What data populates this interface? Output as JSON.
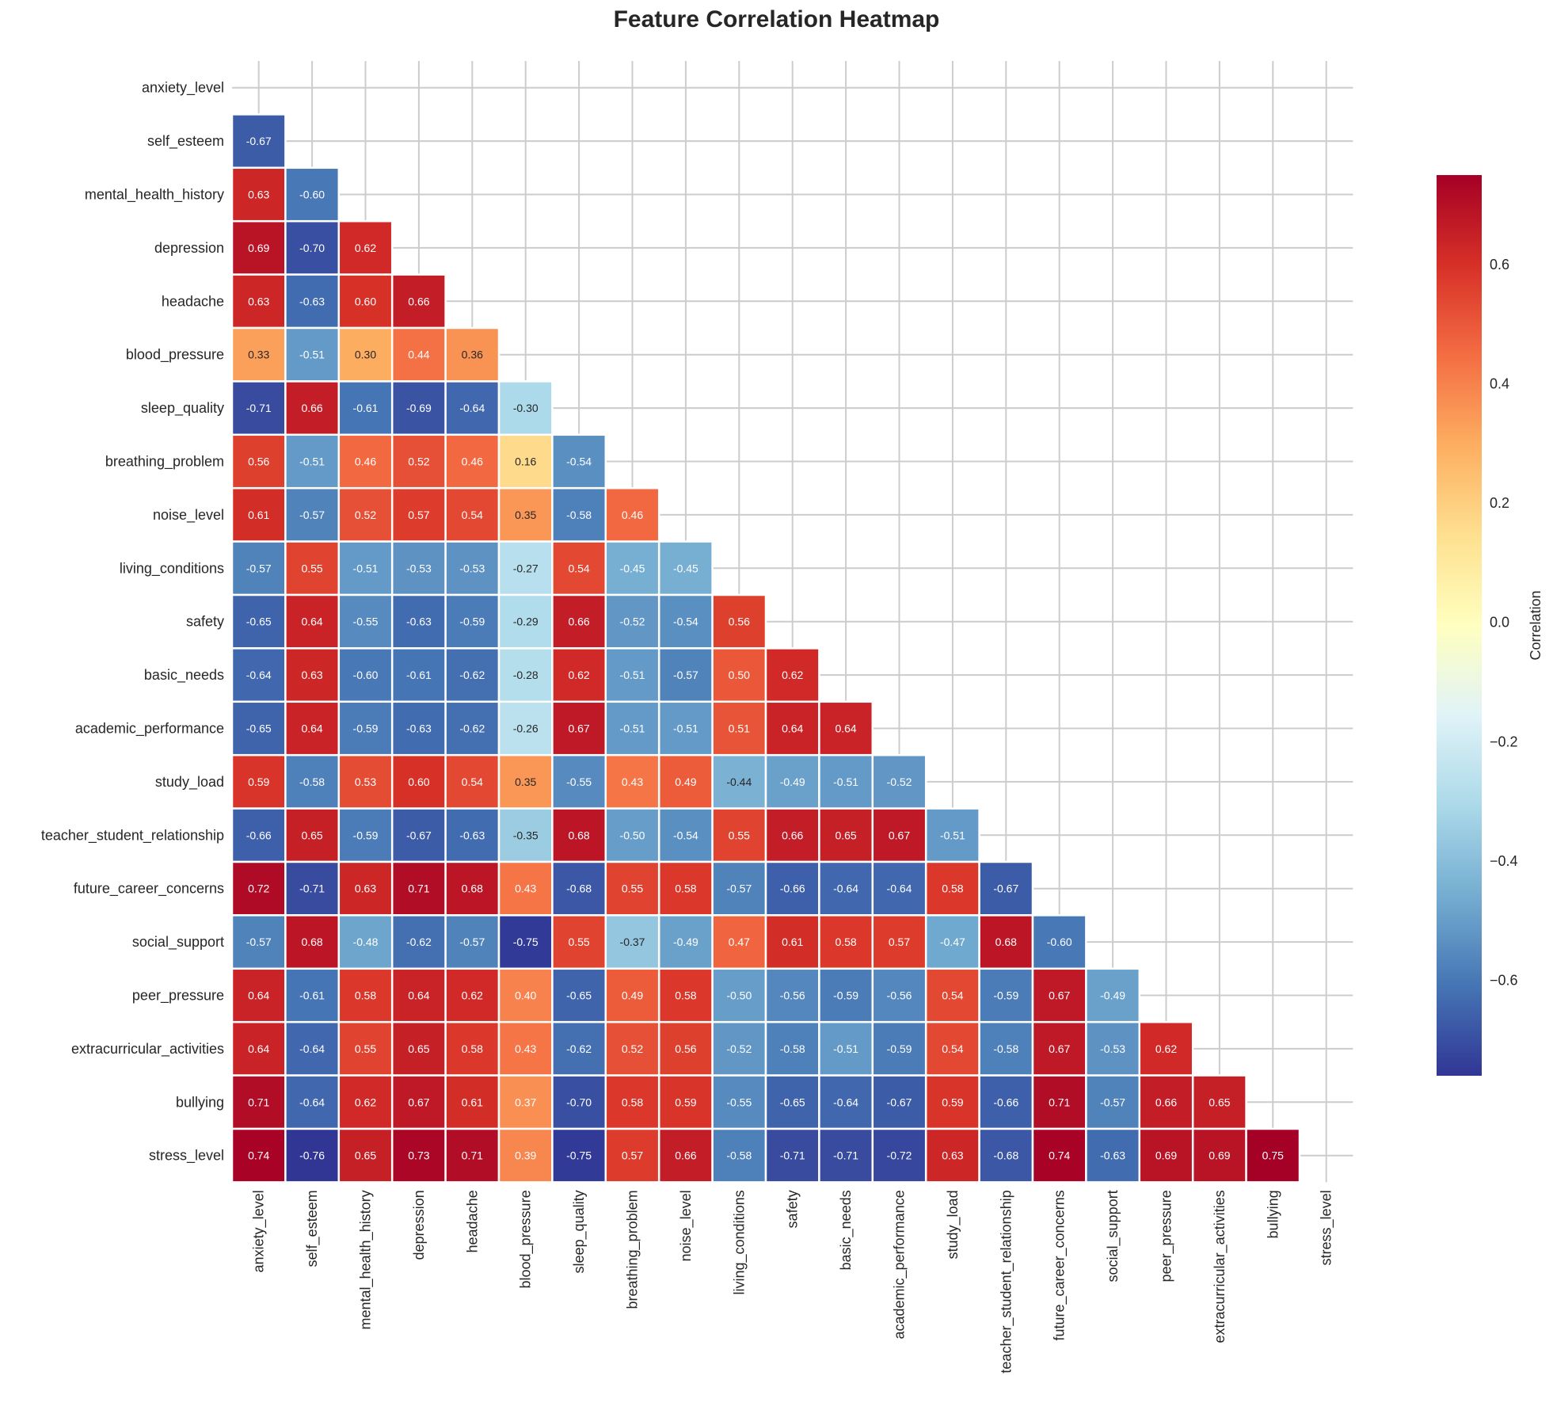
{
  "chart_data": {
    "type": "heatmap",
    "title": "Feature Correlation Heatmap",
    "mask": "upper triangle including diagonal",
    "colormap": "RdYlBu_r",
    "colorbar": {
      "label": "Correlation",
      "range": [
        -0.76,
        0.75
      ],
      "ticks": [
        "0.6",
        "0.4",
        "0.2",
        "0.0",
        "−0.2",
        "−0.4",
        "−0.6"
      ],
      "tick_values": [
        0.6,
        0.4,
        0.2,
        0.0,
        -0.2,
        -0.4,
        -0.6
      ]
    },
    "labels": [
      "anxiety_level",
      "self_esteem",
      "mental_health_history",
      "depression",
      "headache",
      "blood_pressure",
      "sleep_quality",
      "breathing_problem",
      "noise_level",
      "living_conditions",
      "safety",
      "basic_needs",
      "academic_performance",
      "study_load",
      "teacher_student_relationship",
      "future_career_concerns",
      "social_support",
      "peer_pressure",
      "extracurricular_activities",
      "bullying",
      "stress_level"
    ],
    "lower_triangle": [
      [],
      [
        -0.67
      ],
      [
        0.63,
        -0.6
      ],
      [
        0.69,
        -0.7,
        0.62
      ],
      [
        0.63,
        -0.63,
        0.6,
        0.66
      ],
      [
        0.33,
        -0.51,
        0.3,
        0.44,
        0.36
      ],
      [
        -0.71,
        0.66,
        -0.61,
        -0.69,
        -0.64,
        -0.3
      ],
      [
        0.56,
        -0.51,
        0.46,
        0.52,
        0.46,
        0.16,
        -0.54
      ],
      [
        0.61,
        -0.57,
        0.52,
        0.57,
        0.54,
        0.35,
        -0.58,
        0.46
      ],
      [
        -0.57,
        0.55,
        -0.51,
        -0.53,
        -0.53,
        -0.27,
        0.54,
        -0.45,
        -0.45
      ],
      [
        -0.65,
        0.64,
        -0.55,
        -0.63,
        -0.59,
        -0.29,
        0.66,
        -0.52,
        -0.54,
        0.56
      ],
      [
        -0.64,
        0.63,
        -0.6,
        -0.61,
        -0.62,
        -0.28,
        0.62,
        -0.51,
        -0.57,
        0.5,
        0.62
      ],
      [
        -0.65,
        0.64,
        -0.59,
        -0.63,
        -0.62,
        -0.26,
        0.67,
        -0.51,
        -0.51,
        0.51,
        0.64,
        0.64
      ],
      [
        0.59,
        -0.58,
        0.53,
        0.6,
        0.54,
        0.35,
        -0.55,
        0.43,
        0.49,
        -0.44,
        -0.49,
        -0.51,
        -0.52
      ],
      [
        -0.66,
        0.65,
        -0.59,
        -0.67,
        -0.63,
        -0.35,
        0.68,
        -0.5,
        -0.54,
        0.55,
        0.66,
        0.65,
        0.67,
        -0.51
      ],
      [
        0.72,
        -0.71,
        0.63,
        0.71,
        0.68,
        0.43,
        -0.68,
        0.55,
        0.58,
        -0.57,
        -0.66,
        -0.64,
        -0.64,
        0.58,
        -0.67
      ],
      [
        -0.57,
        0.68,
        -0.48,
        -0.62,
        -0.57,
        -0.75,
        0.55,
        -0.37,
        -0.49,
        0.47,
        0.61,
        0.58,
        0.57,
        -0.47,
        0.68,
        -0.6
      ],
      [
        0.64,
        -0.61,
        0.58,
        0.64,
        0.62,
        0.4,
        -0.65,
        0.49,
        0.58,
        -0.5,
        -0.56,
        -0.59,
        -0.56,
        0.54,
        -0.59,
        0.67,
        -0.49
      ],
      [
        0.64,
        -0.64,
        0.55,
        0.65,
        0.58,
        0.43,
        -0.62,
        0.52,
        0.56,
        -0.52,
        -0.58,
        -0.51,
        -0.59,
        0.54,
        -0.58,
        0.67,
        -0.53,
        0.62
      ],
      [
        0.71,
        -0.64,
        0.62,
        0.67,
        0.61,
        0.37,
        -0.7,
        0.58,
        0.59,
        -0.55,
        -0.65,
        -0.64,
        -0.67,
        0.59,
        -0.66,
        0.71,
        -0.57,
        0.66,
        0.65
      ],
      [
        0.74,
        -0.76,
        0.65,
        0.73,
        0.71,
        0.39,
        -0.75,
        0.57,
        0.66,
        -0.58,
        -0.71,
        -0.71,
        -0.72,
        0.63,
        -0.68,
        0.74,
        -0.63,
        0.69,
        0.69,
        0.75
      ]
    ],
    "grid": true
  }
}
